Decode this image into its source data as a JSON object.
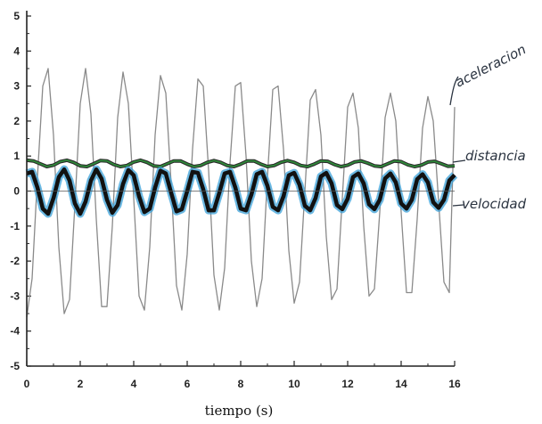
{
  "chart_data": {
    "type": "line",
    "title": "",
    "xlabel": "tiempo  (s)",
    "ylabel": "",
    "xlim": [
      0,
      16
    ],
    "ylim": [
      -5,
      5
    ],
    "x_ticks": [
      "0",
      "2",
      "4",
      "6",
      "8",
      "10",
      "12",
      "14",
      "16"
    ],
    "y_ticks": [
      "5",
      "4",
      "3",
      "2",
      "1",
      "0",
      "-1",
      "-2",
      "-3",
      "-4",
      "-5"
    ],
    "grid": false,
    "legend": "handwritten labels at right end of each curve",
    "series": [
      {
        "name": "aceleracion",
        "color": "#8a8a8a",
        "x": [
          0.0,
          0.2,
          0.4,
          0.6,
          0.8,
          1.0,
          1.2,
          1.4,
          1.6,
          1.8,
          2.0,
          2.2,
          2.4,
          2.6,
          2.8,
          3.0,
          3.2,
          3.4,
          3.6,
          3.8,
          4.0,
          4.2,
          4.4,
          4.6,
          4.8,
          5.0,
          5.2,
          5.4,
          5.6,
          5.8,
          6.0,
          6.2,
          6.4,
          6.6,
          6.8,
          7.0,
          7.2,
          7.4,
          7.6,
          7.8,
          8.0,
          8.2,
          8.4,
          8.6,
          8.8,
          9.0,
          9.2,
          9.4,
          9.6,
          9.8,
          10.0,
          10.2,
          10.4,
          10.6,
          10.8,
          11.0,
          11.2,
          11.4,
          11.6,
          11.8,
          12.0,
          12.2,
          12.4,
          12.6,
          12.8,
          13.0,
          13.2,
          13.4,
          13.6,
          13.8,
          14.0,
          14.2,
          14.4,
          14.6,
          14.8,
          15.0,
          15.2,
          15.4,
          15.6,
          15.8,
          16.0
        ],
        "y": [
          -3.6,
          -2.5,
          0.4,
          3.0,
          3.5,
          1.6,
          -1.6,
          -3.5,
          -3.1,
          -0.4,
          2.5,
          3.5,
          2.2,
          -0.8,
          -3.3,
          -3.3,
          -1.0,
          2.1,
          3.4,
          2.5,
          -0.2,
          -3.0,
          -3.4,
          -1.6,
          1.6,
          3.3,
          2.8,
          0.2,
          -2.7,
          -3.4,
          -1.8,
          1.2,
          3.2,
          3.0,
          0.6,
          -2.4,
          -3.4,
          -2.2,
          0.8,
          3.0,
          3.1,
          1.0,
          -2.0,
          -3.3,
          -2.5,
          0.4,
          2.9,
          3.0,
          1.2,
          -1.7,
          -3.2,
          -2.6,
          0.0,
          2.6,
          2.9,
          1.6,
          -1.3,
          -3.1,
          -2.8,
          -0.2,
          2.4,
          2.8,
          1.8,
          -1.0,
          -3.0,
          -2.8,
          -0.6,
          2.1,
          2.8,
          2.0,
          -0.6,
          -2.9,
          -2.9,
          -0.8,
          1.8,
          2.7,
          2.0,
          -0.3,
          -2.6,
          -2.9,
          2.4
        ]
      },
      {
        "name": "distancia",
        "color": "#2f8a3a",
        "x": [
          0.0,
          0.25,
          0.5,
          0.75,
          1.0,
          1.25,
          1.5,
          1.75,
          2.0,
          2.25,
          2.5,
          2.75,
          3.0,
          3.25,
          3.5,
          3.75,
          4.0,
          4.25,
          4.5,
          4.75,
          5.0,
          5.25,
          5.5,
          5.75,
          6.0,
          6.25,
          6.5,
          6.75,
          7.0,
          7.25,
          7.5,
          7.75,
          8.0,
          8.25,
          8.5,
          8.75,
          9.0,
          9.25,
          9.5,
          9.75,
          10.0,
          10.25,
          10.5,
          10.75,
          11.0,
          11.25,
          11.5,
          11.75,
          12.0,
          12.25,
          12.5,
          12.75,
          13.0,
          13.25,
          13.5,
          13.75,
          14.0,
          14.25,
          14.5,
          14.75,
          15.0,
          15.25,
          15.5,
          15.75,
          16.0
        ],
        "y": [
          0.88,
          0.86,
          0.78,
          0.7,
          0.74,
          0.84,
          0.88,
          0.82,
          0.72,
          0.7,
          0.78,
          0.87,
          0.86,
          0.76,
          0.7,
          0.73,
          0.83,
          0.88,
          0.82,
          0.72,
          0.7,
          0.78,
          0.86,
          0.86,
          0.77,
          0.7,
          0.73,
          0.82,
          0.87,
          0.82,
          0.73,
          0.7,
          0.77,
          0.86,
          0.86,
          0.77,
          0.7,
          0.73,
          0.82,
          0.87,
          0.82,
          0.73,
          0.7,
          0.77,
          0.86,
          0.85,
          0.76,
          0.7,
          0.74,
          0.83,
          0.86,
          0.8,
          0.72,
          0.7,
          0.78,
          0.86,
          0.84,
          0.75,
          0.7,
          0.74,
          0.83,
          0.85,
          0.78,
          0.71,
          0.72
        ]
      },
      {
        "name": "velocidad",
        "color": "#111111",
        "x": [
          0.0,
          0.2,
          0.4,
          0.6,
          0.8,
          1.0,
          1.2,
          1.4,
          1.6,
          1.8,
          2.0,
          2.2,
          2.4,
          2.6,
          2.8,
          3.0,
          3.2,
          3.4,
          3.6,
          3.8,
          4.0,
          4.2,
          4.4,
          4.6,
          4.8,
          5.0,
          5.2,
          5.4,
          5.6,
          5.8,
          6.0,
          6.2,
          6.4,
          6.6,
          6.8,
          7.0,
          7.2,
          7.4,
          7.6,
          7.8,
          8.0,
          8.2,
          8.4,
          8.6,
          8.8,
          9.0,
          9.2,
          9.4,
          9.6,
          9.8,
          10.0,
          10.2,
          10.4,
          10.6,
          10.8,
          11.0,
          11.2,
          11.4,
          11.6,
          11.8,
          12.0,
          12.2,
          12.4,
          12.6,
          12.8,
          13.0,
          13.2,
          13.4,
          13.6,
          13.8,
          14.0,
          14.2,
          14.4,
          14.6,
          14.8,
          15.0,
          15.2,
          15.4,
          15.6,
          15.8,
          16.0
        ],
        "y": [
          0.5,
          0.55,
          0.1,
          -0.5,
          -0.65,
          -0.2,
          0.4,
          0.62,
          0.3,
          -0.35,
          -0.65,
          -0.3,
          0.3,
          0.62,
          0.35,
          -0.25,
          -0.62,
          -0.4,
          0.2,
          0.6,
          0.45,
          -0.15,
          -0.6,
          -0.5,
          0.1,
          0.58,
          0.5,
          -0.05,
          -0.58,
          -0.52,
          0.0,
          0.55,
          0.52,
          0.05,
          -0.55,
          -0.55,
          -0.05,
          0.5,
          0.55,
          0.1,
          -0.5,
          -0.55,
          -0.1,
          0.48,
          0.55,
          0.15,
          -0.45,
          -0.55,
          -0.15,
          0.45,
          0.52,
          0.18,
          -0.42,
          -0.55,
          -0.2,
          0.42,
          0.52,
          0.22,
          -0.4,
          -0.52,
          -0.22,
          0.4,
          0.5,
          0.22,
          -0.38,
          -0.52,
          -0.25,
          0.36,
          0.5,
          0.25,
          -0.35,
          -0.5,
          -0.25,
          0.34,
          0.48,
          0.25,
          -0.32,
          -0.48,
          -0.25,
          0.3,
          0.46
        ]
      }
    ],
    "annotations": [
      "aceleracion",
      "distancia",
      "velocidad"
    ]
  }
}
